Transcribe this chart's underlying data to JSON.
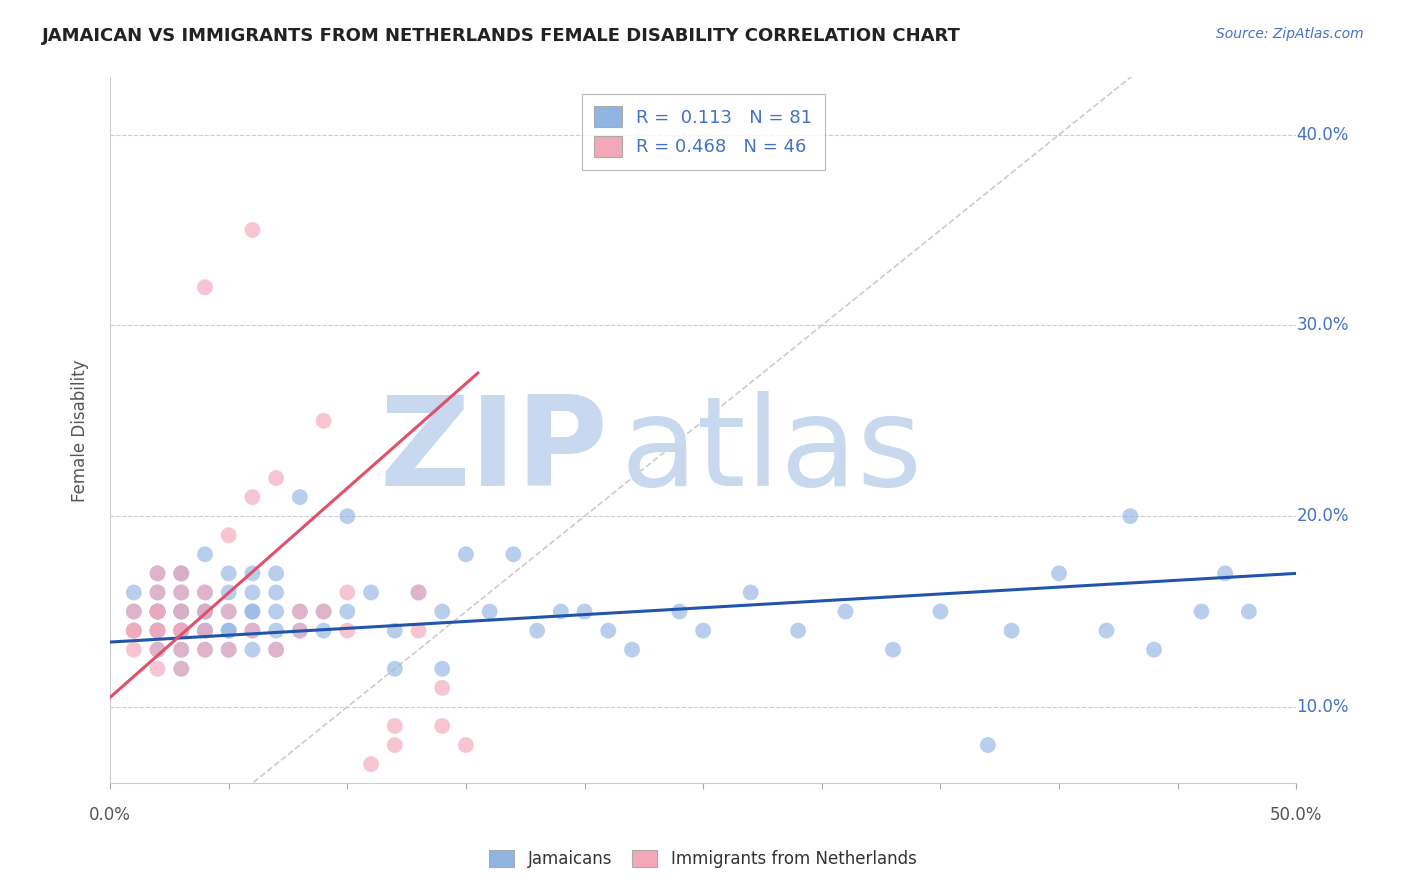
{
  "title": "JAMAICAN VS IMMIGRANTS FROM NETHERLANDS FEMALE DISABILITY CORRELATION CHART",
  "source_text": "Source: ZipAtlas.com",
  "ylabel": "Female Disability",
  "ytick_values": [
    0.1,
    0.2,
    0.3,
    0.4
  ],
  "ytick_labels": [
    "10.0%",
    "20.0%",
    "30.0%",
    "40.0%"
  ],
  "xlim": [
    0.0,
    0.5
  ],
  "ylim": [
    0.06,
    0.43
  ],
  "r_jamaican": 0.113,
  "n_jamaican": 81,
  "r_netherlands": 0.468,
  "n_netherlands": 46,
  "color_jamaican": "#92b4e3",
  "color_netherlands": "#f4a7b9",
  "color_jamaican_line": "#2255aa",
  "color_netherlands_line": "#e0506a",
  "color_diagonal": "#cccccc",
  "watermark_zip": "ZIP",
  "watermark_atlas": "atlas",
  "watermark_color_zip": "#c8d8ee",
  "watermark_color_atlas": "#c8d8ee",
  "legend_label_jamaican": "Jamaicans",
  "legend_label_netherlands": "Immigrants from Netherlands",
  "blue_line_x": [
    0.0,
    0.5
  ],
  "blue_line_y": [
    0.134,
    0.17
  ],
  "pink_line_x": [
    0.0,
    0.155
  ],
  "pink_line_y": [
    0.105,
    0.275
  ],
  "jamaican_x": [
    0.01,
    0.01,
    0.01,
    0.02,
    0.02,
    0.02,
    0.02,
    0.02,
    0.02,
    0.02,
    0.02,
    0.03,
    0.03,
    0.03,
    0.03,
    0.03,
    0.03,
    0.03,
    0.03,
    0.03,
    0.04,
    0.04,
    0.04,
    0.04,
    0.04,
    0.04,
    0.04,
    0.05,
    0.05,
    0.05,
    0.05,
    0.05,
    0.05,
    0.06,
    0.06,
    0.06,
    0.06,
    0.06,
    0.06,
    0.07,
    0.07,
    0.07,
    0.07,
    0.07,
    0.08,
    0.08,
    0.08,
    0.09,
    0.09,
    0.1,
    0.1,
    0.11,
    0.12,
    0.12,
    0.13,
    0.14,
    0.14,
    0.15,
    0.16,
    0.17,
    0.18,
    0.19,
    0.2,
    0.21,
    0.22,
    0.24,
    0.25,
    0.27,
    0.29,
    0.31,
    0.33,
    0.35,
    0.38,
    0.4,
    0.42,
    0.43,
    0.44,
    0.46,
    0.47,
    0.48,
    0.37
  ],
  "jamaican_y": [
    0.14,
    0.15,
    0.16,
    0.13,
    0.14,
    0.14,
    0.15,
    0.15,
    0.15,
    0.16,
    0.17,
    0.12,
    0.13,
    0.14,
    0.14,
    0.15,
    0.15,
    0.16,
    0.17,
    0.17,
    0.13,
    0.14,
    0.14,
    0.15,
    0.15,
    0.16,
    0.18,
    0.13,
    0.14,
    0.14,
    0.15,
    0.16,
    0.17,
    0.13,
    0.14,
    0.15,
    0.15,
    0.16,
    0.17,
    0.13,
    0.14,
    0.15,
    0.16,
    0.17,
    0.14,
    0.15,
    0.21,
    0.14,
    0.15,
    0.15,
    0.2,
    0.16,
    0.12,
    0.14,
    0.16,
    0.12,
    0.15,
    0.18,
    0.15,
    0.18,
    0.14,
    0.15,
    0.15,
    0.14,
    0.13,
    0.15,
    0.14,
    0.16,
    0.14,
    0.15,
    0.13,
    0.15,
    0.14,
    0.17,
    0.14,
    0.2,
    0.13,
    0.15,
    0.17,
    0.15,
    0.08
  ],
  "netherlands_x": [
    0.01,
    0.01,
    0.01,
    0.01,
    0.02,
    0.02,
    0.02,
    0.02,
    0.02,
    0.02,
    0.02,
    0.02,
    0.03,
    0.03,
    0.03,
    0.03,
    0.03,
    0.03,
    0.03,
    0.04,
    0.04,
    0.04,
    0.04,
    0.04,
    0.05,
    0.05,
    0.05,
    0.06,
    0.06,
    0.07,
    0.07,
    0.08,
    0.08,
    0.09,
    0.1,
    0.1,
    0.11,
    0.12,
    0.13,
    0.13,
    0.14,
    0.14,
    0.15,
    0.06,
    0.09,
    0.12
  ],
  "netherlands_y": [
    0.13,
    0.14,
    0.14,
    0.15,
    0.12,
    0.13,
    0.14,
    0.14,
    0.15,
    0.15,
    0.16,
    0.17,
    0.12,
    0.13,
    0.14,
    0.14,
    0.15,
    0.16,
    0.17,
    0.13,
    0.14,
    0.15,
    0.16,
    0.32,
    0.13,
    0.15,
    0.19,
    0.14,
    0.21,
    0.13,
    0.22,
    0.14,
    0.15,
    0.15,
    0.14,
    0.16,
    0.07,
    0.08,
    0.14,
    0.16,
    0.09,
    0.11,
    0.08,
    0.35,
    0.25,
    0.09
  ]
}
